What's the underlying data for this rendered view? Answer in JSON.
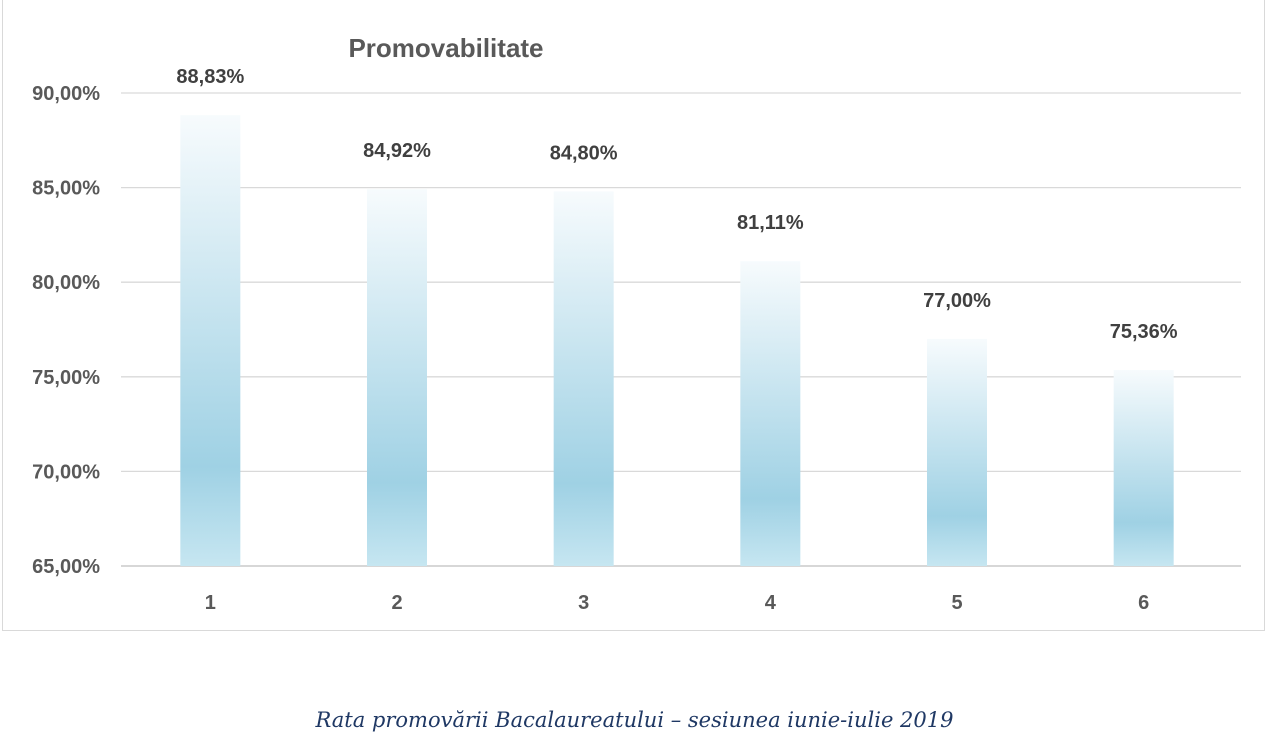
{
  "caption": "Rata promovării Bacalaureatului – sesiunea iunie-iulie 2019",
  "chart_data": {
    "type": "bar",
    "title": "Promovabilitate",
    "categories": [
      "1",
      "2",
      "3",
      "4",
      "5",
      "6"
    ],
    "values": [
      88.83,
      84.92,
      84.8,
      81.11,
      77.0,
      75.36
    ],
    "data_labels": [
      "88,83%",
      "84,92%",
      "84,80%",
      "81,11%",
      "77,00%",
      "75,36%"
    ],
    "xlabel": "",
    "ylabel": "",
    "ylim": [
      65,
      90
    ],
    "yticks": [
      65,
      70,
      75,
      80,
      85,
      90
    ],
    "ytick_labels": [
      "65,00%",
      "70,00%",
      "75,00%",
      "80,00%",
      "85,00%",
      "90,00%"
    ],
    "grid": true,
    "legend": "none",
    "colors": {
      "bar_bottom": "#a6d6e7",
      "bar_mid": "#9fd1e4",
      "bar_top": "#f7fbfd"
    }
  }
}
